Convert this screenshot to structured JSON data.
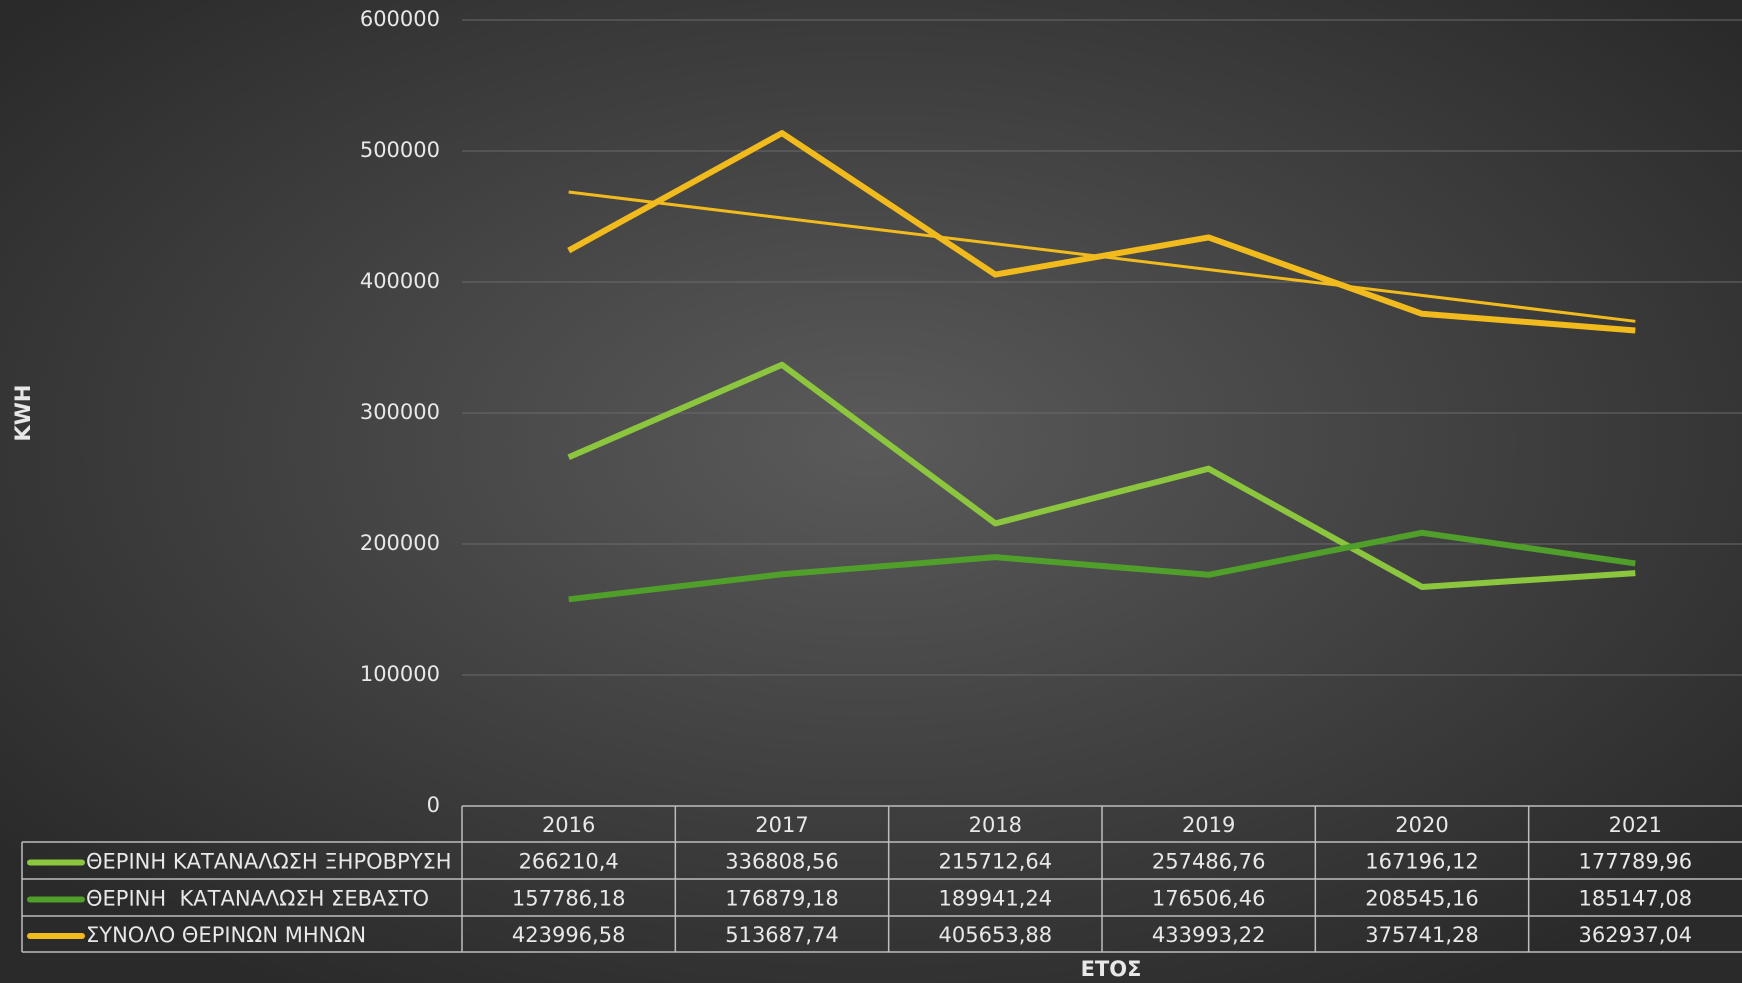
{
  "chart_data": {
    "type": "line",
    "categories": [
      "2016",
      "2017",
      "2018",
      "2019",
      "2020",
      "2021"
    ],
    "series": [
      {
        "name": "ΘΕΡΙΝΗ ΚΑΤΑΝΑΛΩΣΗ ΞΗΡΟΒΡΥΣΗ",
        "color": "#8cc63e",
        "values": [
          266210.4,
          336808.56,
          215712.64,
          257486.76,
          167196.12,
          177789.96
        ],
        "value_labels": [
          "266210,4",
          "336808,56",
          "215712,64",
          "257486,76",
          "167196,12",
          "177789,96"
        ]
      },
      {
        "name": "ΘΕΡΙΝΗ  ΚΑΤΑΝΑΛΩΣΗ ΣΕΒΑΣΤΟ",
        "color": "#4f9f2a",
        "values": [
          157786.18,
          176879.18,
          189941.24,
          176506.46,
          208545.16,
          185147.08
        ],
        "value_labels": [
          "157786,18",
          "176879,18",
          "189941,24",
          "176506,46",
          "208545,16",
          "185147,08"
        ]
      },
      {
        "name": "ΣΥΝΟΛΟ ΘΕΡΙΝΩΝ ΜΗΝΩΝ",
        "color": "#f2bb1d",
        "trendline": "linear",
        "values": [
          423996.58,
          513687.74,
          405653.88,
          433993.22,
          375741.28,
          362937.04
        ],
        "value_labels": [
          "423996,58",
          "513687,74",
          "405653,88",
          "433993,22",
          "375741,28",
          "362937,04"
        ]
      }
    ],
    "y_label": "KWH",
    "x_label": "ΕΤΟΣ",
    "ylim": [
      0,
      600000
    ],
    "yticks": [
      0,
      100000,
      200000,
      300000,
      400000,
      500000,
      600000
    ],
    "grid": true,
    "data_table": true
  }
}
